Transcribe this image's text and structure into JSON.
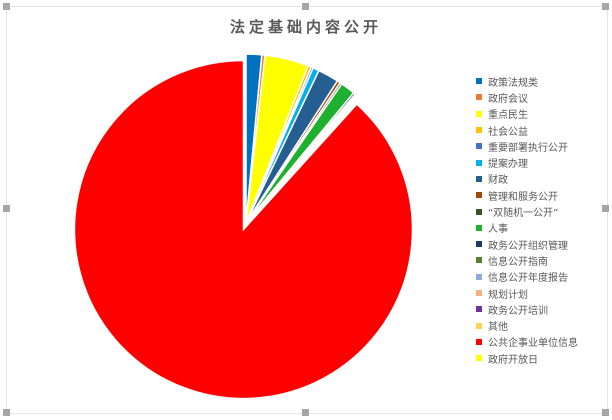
{
  "chart_data": {
    "type": "pie",
    "title": "法定基础内容公开",
    "legend_position": "right",
    "categories": [
      "政策法规类",
      "政府会议",
      "重点民生",
      "社会公益",
      "重要部署执行公开",
      "提案办理",
      "财政",
      "管理和服务公开",
      "“双随机一公开”",
      "人事",
      "政务公开组织管理",
      "信息公开指南",
      "信息公开年度报告",
      "规划计划",
      "政务公开培训",
      "其他",
      "公共企事业单位信息",
      "政府开放日"
    ],
    "values": [
      1.5,
      0.3,
      4.2,
      0.3,
      0.2,
      0.6,
      2.0,
      0.3,
      0.2,
      1.4,
      0.2,
      0.1,
      0.1,
      0.1,
      0.1,
      0.1,
      88.3,
      0.0
    ],
    "colors": [
      "#0070c0",
      "#ed7d31",
      "#ffff00",
      "#ffc000",
      "#4472c4",
      "#00b0f0",
      "#255e91",
      "#9e480e",
      "#375623",
      "#1fb02f",
      "#203864",
      "#548235",
      "#8faadc",
      "#f4b183",
      "#7030a0",
      "#ffd34d",
      "#ff0000",
      "#ffff00"
    ],
    "exploded": [
      "公共企事业单位信息"
    ]
  }
}
